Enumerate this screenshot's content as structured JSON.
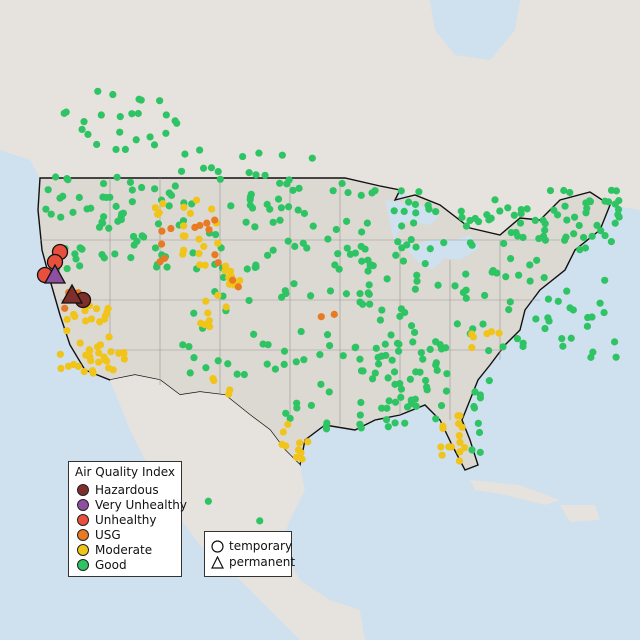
{
  "legend": {
    "title": "Air Quality Index",
    "categories": [
      {
        "label": "Hazardous",
        "color": "#7e2e2b"
      },
      {
        "label": "Very Unhealthy",
        "color": "#8f4fa0"
      },
      {
        "label": "Unhealthy",
        "color": "#e8503d"
      },
      {
        "label": "USG",
        "color": "#e87a22"
      },
      {
        "label": "Moderate",
        "color": "#f0c419"
      },
      {
        "label": "Good",
        "color": "#2ec464"
      }
    ]
  },
  "station_types": {
    "temporary": {
      "label": "temporary",
      "symbol": "circle-icon"
    },
    "permanent": {
      "label": "permanent",
      "symbol": "triangle-icon"
    }
  },
  "colors": {
    "water": "#cfe0ee",
    "land": "#e6e2dd",
    "us_land": "#dcd8d2",
    "border": "#111111"
  }
}
